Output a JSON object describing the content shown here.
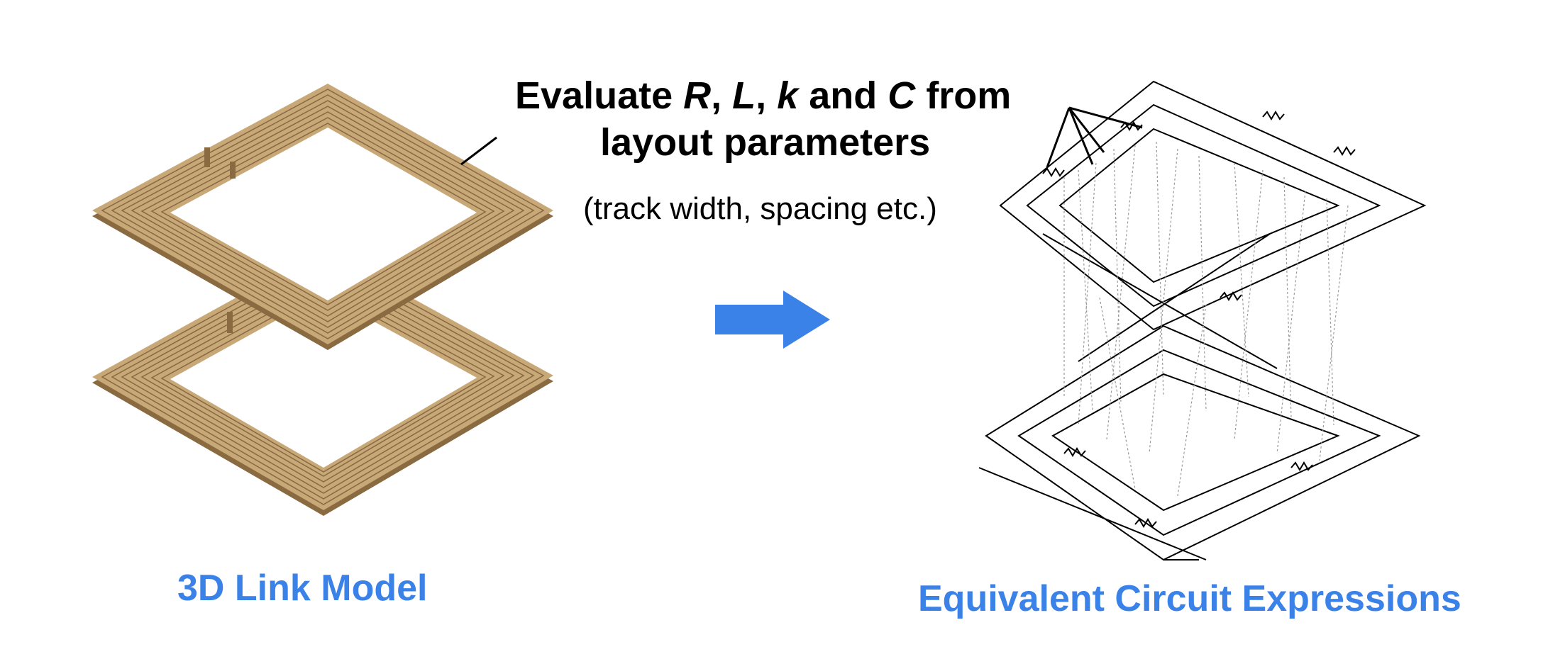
{
  "heading": {
    "line1": {
      "word_evaluate": "Evaluate",
      "sym_r": "R",
      "comma1": ",",
      "sym_l": "L",
      "comma2": ",",
      "sym_k": "k",
      "word_and": "and",
      "sym_c": "C",
      "word_from": "from"
    },
    "line2": "layout parameters"
  },
  "subheading": "(track width, spacing etc.)",
  "left_caption": "3D Link Model",
  "right_caption": "Equivalent Circuit Expressions",
  "colors": {
    "accent": "#3b82e8",
    "coil_face": "#c9a878",
    "coil_shadow": "#8a6a40",
    "coil_line": "#6b4f2c",
    "circuit": "#000000",
    "capacitor_link": "#9a9a9a"
  }
}
